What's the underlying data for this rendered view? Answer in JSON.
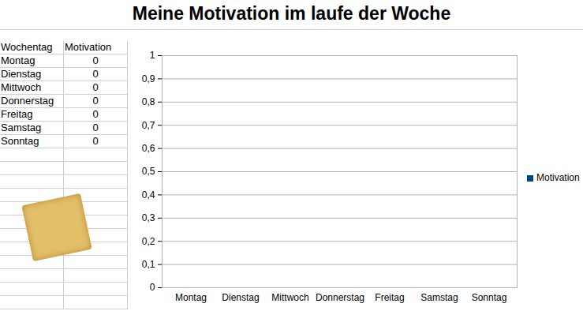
{
  "chart_data": {
    "type": "bar",
    "title": "Meine Motivation im laufe der Woche",
    "categories": [
      "Montag",
      "Dienstag",
      "Mittwoch",
      "Donnerstag",
      "Freitag",
      "Samstag",
      "Sonntag"
    ],
    "series": [
      {
        "name": "Motivation",
        "color": "#004586",
        "values": [
          0,
          0,
          0,
          0,
          0,
          0,
          0
        ]
      }
    ],
    "ylim": [
      0,
      1
    ],
    "yticks": [
      0,
      {
        "value": 0.1,
        "label": "0,1"
      },
      {
        "value": 0.2,
        "label": "0,2"
      },
      {
        "value": 0.3,
        "label": "0,3"
      },
      {
        "value": 0.4,
        "label": "0,4"
      },
      {
        "value": 0.5,
        "label": "0,5"
      },
      {
        "value": 0.6,
        "label": "0,6"
      },
      {
        "value": 0.7,
        "label": "0,7"
      },
      {
        "value": 0.8,
        "label": "0,8"
      },
      {
        "value": 0.9,
        "label": "0,9"
      },
      1
    ],
    "grid": true,
    "legend": "right"
  },
  "table": {
    "header": [
      "Wochentag",
      "Motivation"
    ],
    "rows": [
      [
        "Montag",
        0
      ],
      [
        "Dienstag",
        0
      ],
      [
        "Mittwoch",
        0
      ],
      [
        "Donnerstag",
        0
      ],
      [
        "Freitag",
        0
      ],
      [
        "Samstag",
        0
      ],
      [
        "Sonntag",
        0
      ]
    ]
  }
}
